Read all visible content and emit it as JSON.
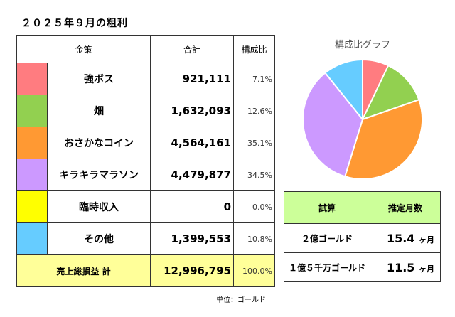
{
  "title": "２０２５年９月の粗利",
  "table": {
    "headers": [
      "金策",
      "合計",
      "構成比"
    ],
    "rows": [
      {
        "color": "#ff7c80",
        "name": "強ボス",
        "total": "921,111",
        "pct": "7.1%"
      },
      {
        "color": "#92d050",
        "name": "畑",
        "total": "1,632,093",
        "pct": "12.6%"
      },
      {
        "color": "#ff9933",
        "name": "おさかなコイン",
        "total": "4,564,161",
        "pct": "35.1%"
      },
      {
        "color": "#cc99ff",
        "name": "キラキラマラソン",
        "total": "4,479,877",
        "pct": "34.5%"
      },
      {
        "color": "#ffff00",
        "name": "臨時収入",
        "total": "0",
        "pct": "0.0%"
      },
      {
        "color": "#66ccff",
        "name": "その他",
        "total": "1,399,553",
        "pct": "10.8%"
      }
    ],
    "total": {
      "label": "売上総損益 計",
      "total": "12,996,795",
      "pct": "100.0%"
    },
    "unit": "単位：ゴールド"
  },
  "chart_data": {
    "type": "pie",
    "title": "構成比グラフ",
    "categories": [
      "強ボス",
      "畑",
      "おさかなコイン",
      "キラキラマラソン",
      "臨時収入",
      "その他"
    ],
    "values": [
      921111,
      1632093,
      4564161,
      4479877,
      0,
      1399553
    ],
    "colors": [
      "#ff7c80",
      "#92d050",
      "#ff9933",
      "#cc99ff",
      "#ffff00",
      "#66ccff"
    ],
    "legend": "none"
  },
  "estimate": {
    "headers": [
      "試算",
      "推定月数"
    ],
    "rows": [
      {
        "label": "２億ゴールド",
        "value": "15.4",
        "unit": "ヶ月"
      },
      {
        "label": "１億５千万ゴールド",
        "value": "11.5",
        "unit": "ヶ月"
      }
    ]
  }
}
